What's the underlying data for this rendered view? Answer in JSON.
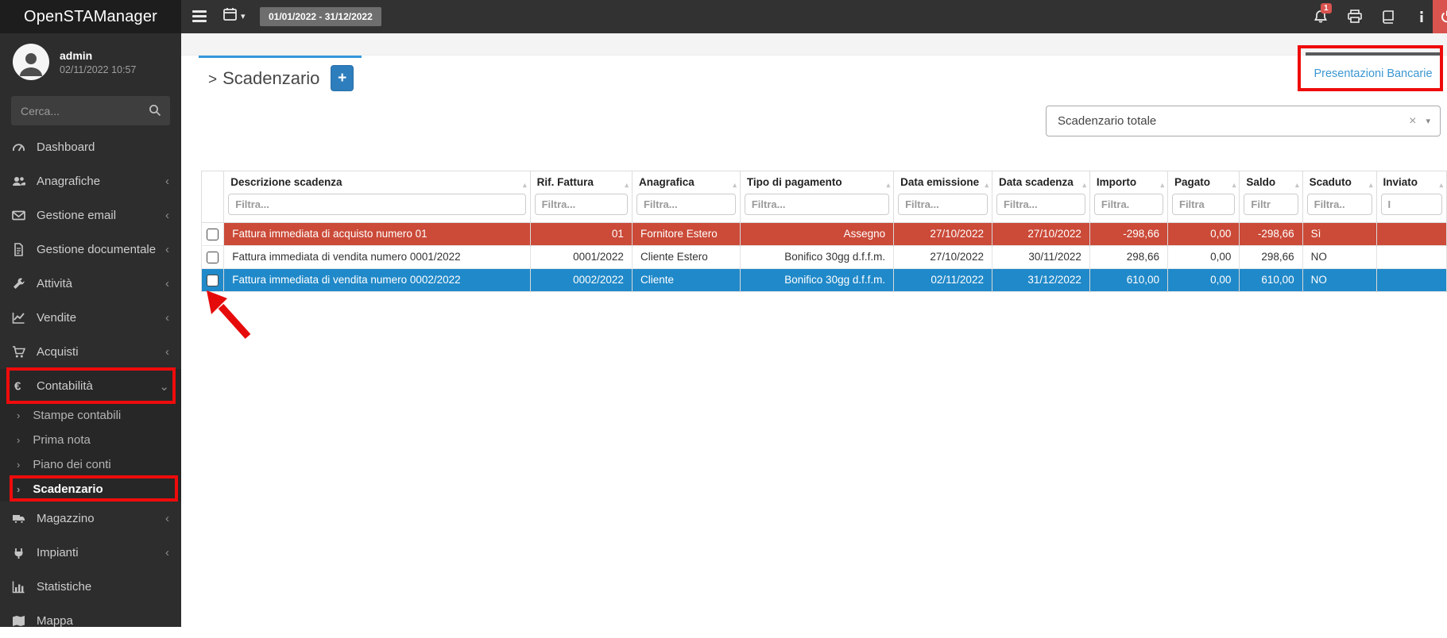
{
  "topbar": {
    "app_title": "OpenSTAManager",
    "date_range": "01/01/2022 - 31/12/2022",
    "notification_count": "1",
    "icons": [
      "hamburger-icon",
      "calendar-icon",
      "bell-icon",
      "printer-icon",
      "book-icon",
      "info-icon",
      "power-icon"
    ]
  },
  "sidebar": {
    "user": {
      "name": "admin",
      "datetime": "02/11/2022 10:57"
    },
    "search_placeholder": "Cerca...",
    "items": [
      {
        "id": "dashboard",
        "label": "Dashboard",
        "icon": "gauge-icon"
      },
      {
        "id": "anagrafiche",
        "label": "Anagrafiche",
        "icon": "users-icon",
        "chevron": "left"
      },
      {
        "id": "gestione-email",
        "label": "Gestione email",
        "icon": "envelope-icon",
        "chevron": "left"
      },
      {
        "id": "gestione-documentale",
        "label": "Gestione documentale",
        "icon": "document-icon",
        "chevron": "left"
      },
      {
        "id": "attivita",
        "label": "Attività",
        "icon": "wrench-icon",
        "chevron": "left"
      },
      {
        "id": "vendite",
        "label": "Vendite",
        "icon": "chart-line-icon",
        "chevron": "left"
      },
      {
        "id": "acquisti",
        "label": "Acquisti",
        "icon": "cart-icon",
        "chevron": "left"
      },
      {
        "id": "contabilita",
        "label": "Contabilità",
        "icon": "euro-icon",
        "chevron": "down",
        "open": true,
        "children": [
          {
            "id": "stampe-contabili",
            "label": "Stampe contabili"
          },
          {
            "id": "prima-nota",
            "label": "Prima nota"
          },
          {
            "id": "piano-dei-conti",
            "label": "Piano dei conti"
          },
          {
            "id": "scadenzario",
            "label": "Scadenzario",
            "active": true
          }
        ]
      },
      {
        "id": "magazzino",
        "label": "Magazzino",
        "icon": "truck-icon",
        "chevron": "left"
      },
      {
        "id": "impianti",
        "label": "Impianti",
        "icon": "plug-icon",
        "chevron": "left"
      },
      {
        "id": "statistiche",
        "label": "Statistiche",
        "icon": "bar-chart-icon"
      },
      {
        "id": "mappa",
        "label": "Mappa",
        "icon": "map-icon"
      }
    ]
  },
  "main": {
    "page_title_prefix": ">",
    "page_title": "Scadenzario",
    "add_button_label": "+",
    "presentazioni_link": "Presentazioni Bancarie",
    "filter_select": {
      "value": "Scadenzario totale",
      "clear_glyph": "×",
      "caret_glyph": "▾"
    }
  },
  "table": {
    "columns": [
      {
        "label": "",
        "filter": null,
        "align": "left"
      },
      {
        "label": "Descrizione scadenza",
        "filter": "Filtra...",
        "align": "left"
      },
      {
        "label": "Rif. Fattura",
        "filter": "Filtra...",
        "align": "right"
      },
      {
        "label": "Anagrafica",
        "filter": "Filtra...",
        "align": "left"
      },
      {
        "label": "Tipo di pagamento",
        "filter": "Filtra...",
        "align": "right"
      },
      {
        "label": "Data emissione",
        "filter": "Filtra...",
        "align": "right"
      },
      {
        "label": "Data scadenza",
        "filter": "Filtra...",
        "align": "right"
      },
      {
        "label": "Importo",
        "filter": "Filtra.",
        "align": "right"
      },
      {
        "label": "Pagato",
        "filter": "Filtra",
        "align": "right"
      },
      {
        "label": "Saldo",
        "filter": "Filtr",
        "align": "right"
      },
      {
        "label": "Scaduto",
        "filter": "Filtra..",
        "align": "left"
      },
      {
        "label": "Inviato",
        "filter": "I",
        "align": "left"
      }
    ],
    "rows": [
      {
        "state": "danger",
        "checked": false,
        "cells": [
          "Fattura immediata di acquisto numero 01",
          "01",
          "Fornitore Estero",
          "Assegno",
          "27/10/2022",
          "27/10/2022",
          "-298,66",
          "0,00",
          "-298,66",
          "Sì",
          ""
        ]
      },
      {
        "state": "default",
        "checked": false,
        "cells": [
          "Fattura immediata di vendita numero 0001/2022",
          "0001/2022",
          "Cliente Estero",
          "Bonifico 30gg d.f.f.m.",
          "27/10/2022",
          "30/11/2022",
          "298,66",
          "0,00",
          "298,66",
          "NO",
          ""
        ]
      },
      {
        "state": "selected",
        "checked": true,
        "cells": [
          "Fattura immediata di vendita numero 0002/2022",
          "0002/2022",
          "Cliente",
          "Bonifico 30gg d.f.f.m.",
          "02/11/2022",
          "31/12/2022",
          "610,00",
          "0,00",
          "610,00",
          "NO",
          ""
        ]
      }
    ]
  },
  "colors": {
    "danger_row": "#cb4a38",
    "selected_row": "#2089c9",
    "accent_blue": "#3498db",
    "primary_button": "#2e7ebd",
    "annotation_red": "#ef0b0b",
    "topbar_red": "#d9534f"
  }
}
